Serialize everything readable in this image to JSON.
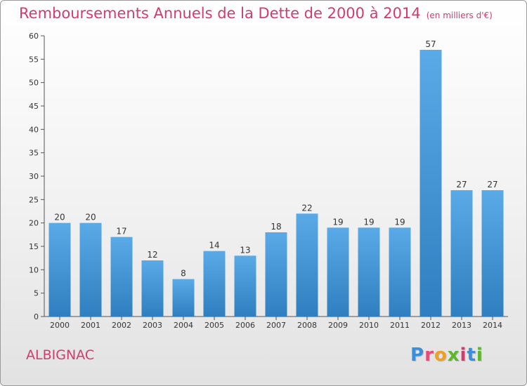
{
  "chart_data": {
    "type": "bar",
    "title": "Remboursements Annuels de la Dette de 2000 à 2014",
    "subtitle": "(en milliers d'€)",
    "categories": [
      "2000",
      "2001",
      "2002",
      "2003",
      "2004",
      "2005",
      "2006",
      "2007",
      "2008",
      "2009",
      "2010",
      "2011",
      "2012",
      "2013",
      "2014"
    ],
    "values": [
      20,
      20,
      17,
      12,
      8,
      14,
      13,
      18,
      22,
      19,
      19,
      19,
      57,
      27,
      27
    ],
    "ylim": [
      0,
      60
    ],
    "yticks": [
      0,
      5,
      10,
      15,
      20,
      25,
      30,
      35,
      40,
      45,
      50,
      55,
      60
    ],
    "grid": false,
    "bar_color_top": "#5aaae8",
    "bar_color_bottom": "#2f7fc0"
  },
  "commune": "ALBIGNAC",
  "brand": {
    "letters": [
      "P",
      "r",
      "o",
      "x",
      "i",
      "t",
      "i"
    ],
    "colors": [
      "#3a8fd8",
      "#e84a7a",
      "#f0a020",
      "#5cb82a",
      "#d23b6e",
      "#3a8fd8",
      "#5cb82a"
    ]
  },
  "colors": {
    "title": "#d23b6e",
    "axis": "#333333"
  }
}
